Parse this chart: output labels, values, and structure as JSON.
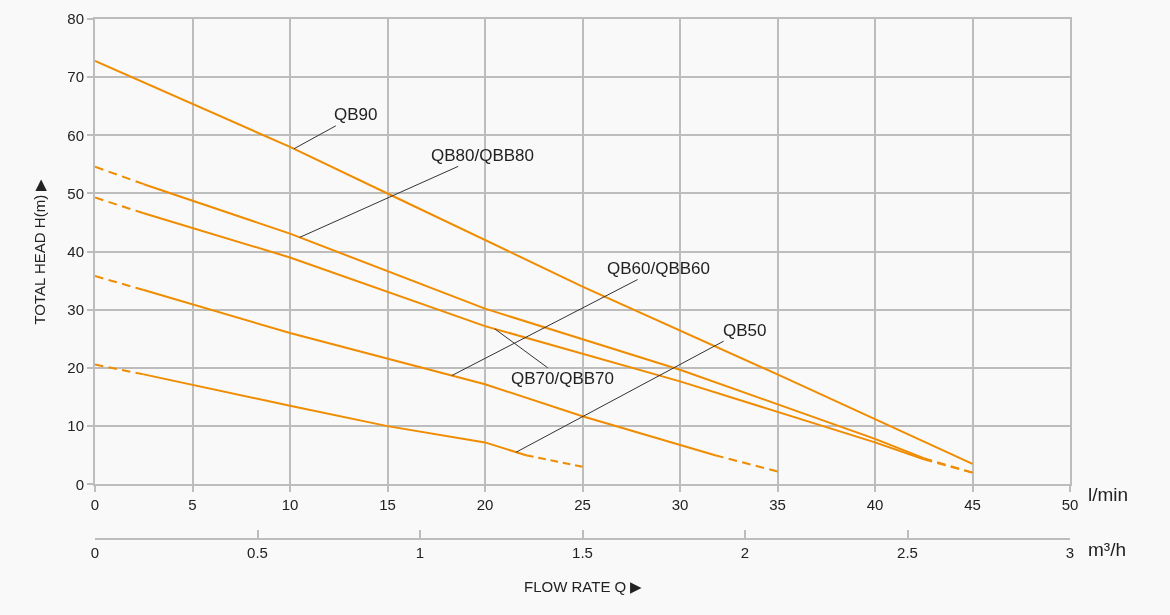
{
  "chart_data": {
    "type": "line",
    "xlabel": "FLOW RATE Q ▶",
    "ylabel": "TOTAL HEAD H(m) ▶",
    "annotations": [
      "l/min",
      "m³/h"
    ],
    "xlim": [
      0,
      50
    ],
    "xticks": [
      0,
      5,
      10,
      15,
      20,
      25,
      30,
      35,
      40,
      45,
      50
    ],
    "ylim": [
      0,
      80
    ],
    "yticks": [
      0,
      10,
      20,
      30,
      40,
      50,
      60,
      70,
      80
    ],
    "x2lim": [
      0,
      3
    ],
    "x2ticks": [
      0,
      0.5,
      1,
      1.5,
      2,
      2.5,
      3
    ],
    "grid": true,
    "marker": "none",
    "series": [
      {
        "name": "QB90",
        "color": "#f08c00",
        "line_style": "solid",
        "x": [
          0,
          10,
          15,
          25,
          35,
          45
        ],
        "values": [
          72.8,
          58,
          50,
          34,
          18.9,
          3.5
        ]
      },
      {
        "name": "QB80/QBB80",
        "color": "#f08c00",
        "line_style": "solid",
        "x": [
          2.5,
          10,
          20,
          30,
          40,
          42.5
        ],
        "values": [
          51.6,
          43.1,
          30.2,
          19.7,
          7.8,
          4.5
        ]
      },
      {
        "name": "QB70/QBB70",
        "color": "#f08c00",
        "line_style": "solid",
        "x": [
          2.5,
          10,
          20,
          30,
          40,
          42.5
        ],
        "values": [
          46.6,
          39,
          27.2,
          17.7,
          7.2,
          4.3
        ]
      },
      {
        "name": "QB60/QBB60",
        "color": "#f08c00",
        "line_style": "solid",
        "x": [
          2.5,
          10,
          20,
          25,
          31.8
        ],
        "values": [
          33.4,
          26,
          17.2,
          11.7,
          5.0
        ]
      },
      {
        "name": "QB50",
        "color": "#f08c00",
        "line_style": "solid",
        "x": [
          2.5,
          10,
          15,
          20,
          22.1
        ],
        "values": [
          18.9,
          13.5,
          10,
          7.2,
          5.0
        ]
      },
      {
        "color": "#f08c00",
        "line_style": "dashed",
        "x": [
          0,
          2.5
        ],
        "values": [
          54.6,
          51.6
        ]
      },
      {
        "color": "#f08c00",
        "line_style": "dashed",
        "x": [
          42.5,
          45
        ],
        "values": [
          4.5,
          2
        ]
      },
      {
        "color": "#f08c00",
        "line_style": "dashed",
        "x": [
          0,
          2.5
        ],
        "values": [
          49.3,
          46.6
        ]
      },
      {
        "color": "#f08c00",
        "line_style": "dashed",
        "x": [
          42.5,
          45
        ],
        "values": [
          4.3,
          2
        ]
      },
      {
        "color": "#f08c00",
        "line_style": "dashed",
        "x": [
          0,
          2.5
        ],
        "values": [
          35.8,
          33.4
        ]
      },
      {
        "color": "#f08c00",
        "line_style": "dashed",
        "x": [
          31.8,
          35
        ],
        "values": [
          5.0,
          2.2
        ]
      },
      {
        "color": "#f08c00",
        "line_style": "dashed",
        "x": [
          0,
          2.5
        ],
        "values": [
          20.6,
          18.9
        ]
      },
      {
        "color": "#f08c00",
        "line_style": "dashed",
        "x": [
          22.1,
          25
        ],
        "values": [
          5.0,
          3
        ]
      }
    ]
  }
}
